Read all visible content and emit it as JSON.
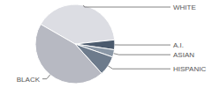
{
  "chart_data": {
    "type": "pie",
    "categories": [
      "WHITE",
      "A.I.",
      "ASIAN",
      "HISPANIC",
      "BLACK"
    ],
    "values": [
      40,
      4,
      3,
      8,
      45
    ],
    "colors": [
      "#dcdde3",
      "#4b5a6d",
      "#8a97a6",
      "#6d7b8c",
      "#b7b9c2"
    ]
  }
}
